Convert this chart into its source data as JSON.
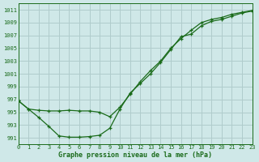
{
  "title": "Graphe pression niveau de la mer (hPa)",
  "bg_color": "#cfe8e8",
  "grid_color": "#b0cccc",
  "line_color": "#1a6b1a",
  "xlim": [
    0,
    23
  ],
  "ylim": [
    990,
    1012
  ],
  "yticks": [
    991,
    993,
    995,
    997,
    999,
    1001,
    1003,
    1005,
    1007,
    1009,
    1011
  ],
  "xticks": [
    0,
    1,
    2,
    3,
    4,
    5,
    6,
    7,
    8,
    9,
    10,
    11,
    12,
    13,
    14,
    15,
    16,
    17,
    18,
    19,
    20,
    21,
    22,
    23
  ],
  "line1_x": [
    0,
    1,
    2,
    3,
    4,
    5,
    6,
    7,
    8,
    9,
    10,
    11,
    12,
    13,
    14,
    15,
    16,
    17,
    18,
    19,
    20,
    21,
    22,
    23
  ],
  "line1_y": [
    996.8,
    995.5,
    994.2,
    992.8,
    991.3,
    991.1,
    991.1,
    991.2,
    991.4,
    992.5,
    995.5,
    998.0,
    999.5,
    1001.0,
    1002.8,
    1004.8,
    1006.8,
    1007.2,
    1008.5,
    1009.2,
    1009.5,
    1010.0,
    1010.5,
    1010.8
  ],
  "line2_x": [
    0,
    1,
    2,
    3,
    4,
    5,
    6,
    7,
    8,
    9,
    10,
    11,
    12,
    13,
    14,
    15,
    16,
    17,
    18,
    19,
    20,
    21,
    22,
    23
  ],
  "line2_y": [
    996.8,
    995.5,
    995.3,
    995.2,
    995.2,
    995.3,
    995.2,
    995.2,
    995.0,
    994.3,
    995.8,
    997.8,
    999.8,
    1001.5,
    1003.0,
    1005.0,
    1006.5,
    1007.8,
    1009.0,
    1009.5,
    1009.8,
    1010.3,
    1010.6,
    1010.9
  ]
}
